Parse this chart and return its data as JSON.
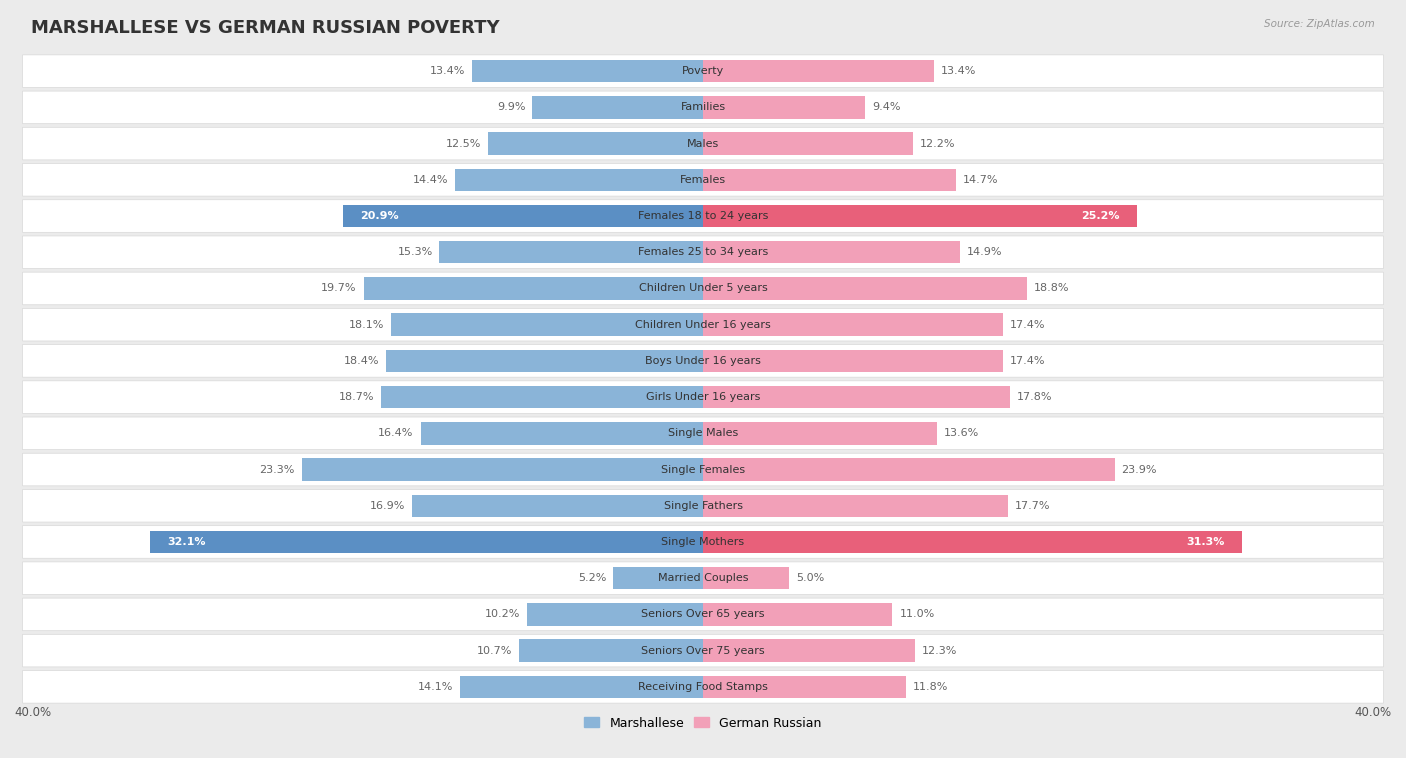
{
  "title": "MARSHALLESE VS GERMAN RUSSIAN POVERTY",
  "source": "Source: ZipAtlas.com",
  "categories": [
    "Poverty",
    "Families",
    "Males",
    "Females",
    "Females 18 to 24 years",
    "Females 25 to 34 years",
    "Children Under 5 years",
    "Children Under 16 years",
    "Boys Under 16 years",
    "Girls Under 16 years",
    "Single Males",
    "Single Females",
    "Single Fathers",
    "Single Mothers",
    "Married Couples",
    "Seniors Over 65 years",
    "Seniors Over 75 years",
    "Receiving Food Stamps"
  ],
  "marshallese": [
    13.4,
    9.9,
    12.5,
    14.4,
    20.9,
    15.3,
    19.7,
    18.1,
    18.4,
    18.7,
    16.4,
    23.3,
    16.9,
    32.1,
    5.2,
    10.2,
    10.7,
    14.1
  ],
  "german_russian": [
    13.4,
    9.4,
    12.2,
    14.7,
    25.2,
    14.9,
    18.8,
    17.4,
    17.4,
    17.8,
    13.6,
    23.9,
    17.7,
    31.3,
    5.0,
    11.0,
    12.3,
    11.8
  ],
  "marshallese_color": "#8ab4d8",
  "german_russian_color": "#f2a0b8",
  "marshallese_highlight_color": "#5b8fc4",
  "german_russian_highlight_color": "#e8607a",
  "highlight_indices": [
    4,
    13
  ],
  "bar_height": 0.62,
  "row_bg_color": "#ffffff",
  "row_border_color": "#d8d8d8",
  "outer_bg_color": "#ebebeb",
  "legend_marshallese": "Marshallese",
  "legend_german_russian": "German Russian",
  "title_fontsize": 13,
  "value_fontsize": 8,
  "category_fontsize": 8,
  "axis_label_fontsize": 8.5
}
